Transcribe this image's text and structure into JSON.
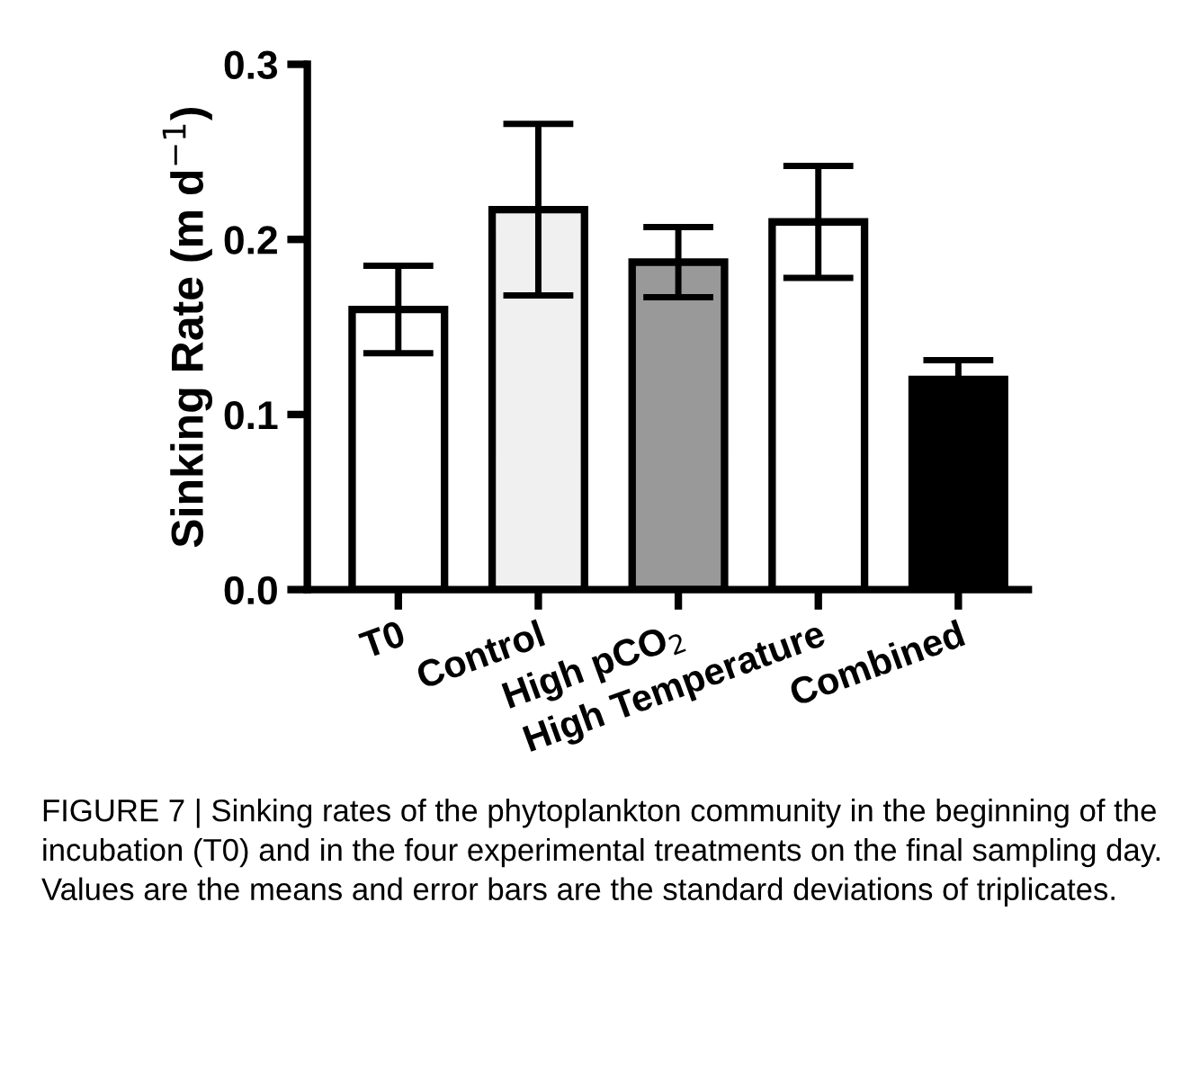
{
  "chart_data": {
    "type": "bar",
    "ylabel": "Sinking Rate (m d$^{−1}$)",
    "categories": [
      "T0",
      "Control",
      "High pCO$_{2}$",
      "High Temperature",
      "Combined"
    ],
    "values": [
      0.16,
      0.217,
      0.187,
      0.21,
      0.12
    ],
    "errors": [
      0.025,
      0.049,
      0.02,
      0.032,
      0.011
    ],
    "colors": [
      "#ffffff",
      "#f0f0f0",
      "#999999",
      "#ffffff",
      "#000000"
    ],
    "ylim": [
      0,
      0.3
    ],
    "yticks": [
      {
        "value": 0,
        "label": "0.0"
      },
      {
        "value": 0.1,
        "label": "0.1"
      },
      {
        "value": 0.2,
        "label": "0.2"
      },
      {
        "value": 0.3,
        "label": "0.3"
      }
    ],
    "grid": false,
    "legend": false,
    "annotations": [
      "FIGURE 7 | Sinking rates of the phytoplankton community in the beginning of the incubation (T0) and in the four experimental treatments on the final sampling day. Values are the means and error bars are the standard deviations of triplicates."
    ]
  }
}
